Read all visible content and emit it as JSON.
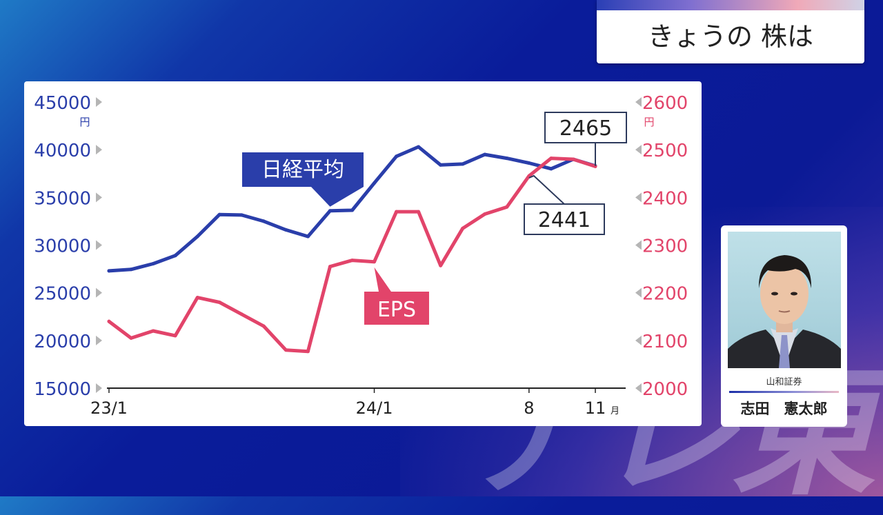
{
  "screen": {
    "title": "きょうの 株は",
    "watermark": "テレ東"
  },
  "person": {
    "firm": "山和証券",
    "name": "志田　憲太郎",
    "photo_icon": "person-photo"
  },
  "chart_data": {
    "type": "line",
    "x_ticks": [
      {
        "label": "23/1",
        "index": 0
      },
      {
        "label": "24/1",
        "index": 12
      },
      {
        "label": "8",
        "index": 19
      },
      {
        "label": "11",
        "index": 22,
        "unit": "月"
      }
    ],
    "left_axis": {
      "ticks": [
        "45000",
        "40000",
        "35000",
        "30000",
        "25000",
        "20000",
        "15000"
      ],
      "unit": "円",
      "range": [
        15000,
        45000
      ],
      "color": "#2a3eaa"
    },
    "right_axis": {
      "ticks": [
        "2600",
        "2500",
        "2400",
        "2300",
        "2200",
        "2100",
        "2000"
      ],
      "unit": "円",
      "range": [
        2000,
        2600
      ],
      "color": "#e2446a"
    },
    "series": [
      {
        "name": "日経平均",
        "axis": "left",
        "color": "#2a3eaa",
        "x": [
          0,
          1,
          2,
          3,
          4,
          5,
          6,
          7,
          8,
          9,
          10,
          11,
          12,
          13,
          14,
          15,
          16,
          17,
          18,
          19,
          20,
          21,
          22
        ],
        "values": [
          27300,
          27450,
          28050,
          28900,
          30900,
          33200,
          33150,
          32500,
          31600,
          30900,
          33600,
          33650,
          36500,
          39300,
          40300,
          38400,
          38500,
          39500,
          39100,
          38600,
          38000,
          39000,
          38300
        ]
      },
      {
        "name": "EPS",
        "axis": "right",
        "color": "#e2446a",
        "x": [
          0,
          1,
          2,
          3,
          4,
          5,
          6,
          7,
          8,
          9,
          10,
          11,
          12,
          13,
          14,
          15,
          16,
          17,
          18,
          19,
          20,
          21,
          22
        ],
        "values": [
          2140,
          2105,
          2120,
          2110,
          2190,
          2180,
          2155,
          2130,
          2080,
          2077,
          2255,
          2268,
          2265,
          2370,
          2370,
          2257,
          2335,
          2365,
          2380,
          2445,
          2482,
          2480,
          2465
        ]
      }
    ],
    "callouts": [
      {
        "text": "2465"
      },
      {
        "text": "2441"
      }
    ]
  }
}
